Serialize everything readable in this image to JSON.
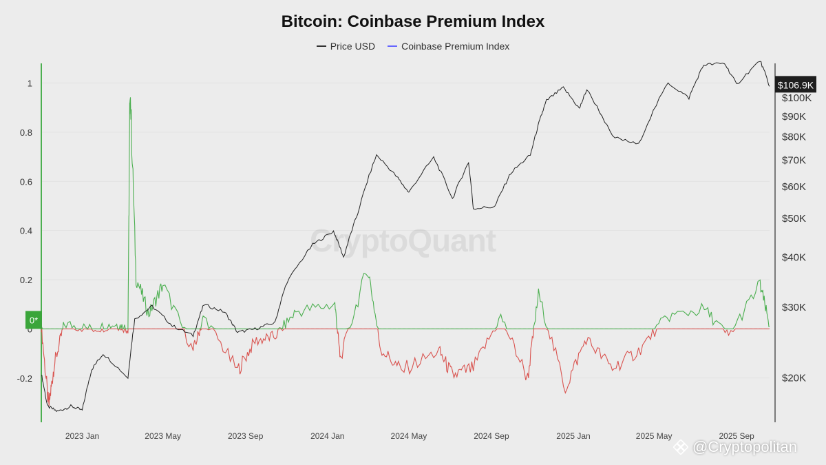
{
  "chart_data": {
    "type": "line",
    "title": "Bitcoin: Coinbase Premium Index",
    "legend": [
      {
        "name": "Price USD",
        "color": "#333333"
      },
      {
        "name": "Coinbase Premium Index",
        "color": "#6666ff"
      }
    ],
    "x_ticks": [
      "2023 Jan",
      "2023 May",
      "2023 Sep",
      "2024 Jan",
      "2024 May",
      "2024 Sep",
      "2025 Jan",
      "2025 May",
      "2025 Sep"
    ],
    "left_axis": {
      "ticks": [
        -0.2,
        0,
        0.2,
        0.4,
        0.6,
        0.8,
        1
      ],
      "tick_labels": [
        "-0.2",
        "0",
        "0.2",
        "0.4",
        "0.6",
        "0.8",
        "1"
      ],
      "range": [
        -0.38,
        1.08
      ]
    },
    "right_axis": {
      "scale": "log",
      "ticks": [
        20000,
        30000,
        40000,
        50000,
        60000,
        70000,
        80000,
        90000,
        100000
      ],
      "tick_labels": [
        "$20K",
        "$30K",
        "$40K",
        "$50K",
        "$60K",
        "$70K",
        "$80K",
        "$90K",
        "$100K"
      ],
      "range": [
        15500,
        122000
      ]
    },
    "time_range": [
      "2022-11-01",
      "2025-10-20"
    ],
    "current_price_label": "$106.9K",
    "current_index_label": "0*",
    "price_series": [
      {
        "t": "2022-11-01",
        "v": 20500
      },
      {
        "t": "2022-11-10",
        "v": 17000
      },
      {
        "t": "2022-11-25",
        "v": 16500
      },
      {
        "t": "2022-12-15",
        "v": 17000
      },
      {
        "t": "2023-01-01",
        "v": 16600
      },
      {
        "t": "2023-01-15",
        "v": 21000
      },
      {
        "t": "2023-02-01",
        "v": 23000
      },
      {
        "t": "2023-03-10",
        "v": 20000
      },
      {
        "t": "2023-03-20",
        "v": 28000
      },
      {
        "t": "2023-04-15",
        "v": 30200
      },
      {
        "t": "2023-05-15",
        "v": 27000
      },
      {
        "t": "2023-06-15",
        "v": 25500
      },
      {
        "t": "2023-07-01",
        "v": 30500
      },
      {
        "t": "2023-08-01",
        "v": 29200
      },
      {
        "t": "2023-08-20",
        "v": 26000
      },
      {
        "t": "2023-09-15",
        "v": 26500
      },
      {
        "t": "2023-10-15",
        "v": 27500
      },
      {
        "t": "2023-11-01",
        "v": 34500
      },
      {
        "t": "2023-12-10",
        "v": 43000
      },
      {
        "t": "2024-01-10",
        "v": 46500
      },
      {
        "t": "2024-01-25",
        "v": 40000
      },
      {
        "t": "2024-02-15",
        "v": 51500
      },
      {
        "t": "2024-03-14",
        "v": 72000
      },
      {
        "t": "2024-04-15",
        "v": 63000
      },
      {
        "t": "2024-05-01",
        "v": 58000
      },
      {
        "t": "2024-06-07",
        "v": 71000
      },
      {
        "t": "2024-07-05",
        "v": 56000
      },
      {
        "t": "2024-07-29",
        "v": 69000
      },
      {
        "t": "2024-08-05",
        "v": 53000
      },
      {
        "t": "2024-09-06",
        "v": 53500
      },
      {
        "t": "2024-09-30",
        "v": 65000
      },
      {
        "t": "2024-10-29",
        "v": 72000
      },
      {
        "t": "2024-11-12",
        "v": 88000
      },
      {
        "t": "2024-11-22",
        "v": 98500
      },
      {
        "t": "2024-12-17",
        "v": 106000
      },
      {
        "t": "2025-01-10",
        "v": 94000
      },
      {
        "t": "2025-01-21",
        "v": 105000
      },
      {
        "t": "2025-02-28",
        "v": 80000
      },
      {
        "t": "2025-04-08",
        "v": 76500
      },
      {
        "t": "2025-05-22",
        "v": 109000
      },
      {
        "t": "2025-06-22",
        "v": 100000
      },
      {
        "t": "2025-07-14",
        "v": 121000
      },
      {
        "t": "2025-08-14",
        "v": 122000
      },
      {
        "t": "2025-09-01",
        "v": 108000
      },
      {
        "t": "2025-10-06",
        "v": 124000
      },
      {
        "t": "2025-10-20",
        "v": 106900
      }
    ],
    "premium_series": [
      {
        "t": "2022-11-01",
        "v": 0.01
      },
      {
        "t": "2022-11-12",
        "v": -0.32
      },
      {
        "t": "2022-11-20",
        "v": -0.15
      },
      {
        "t": "2022-12-05",
        "v": 0.02
      },
      {
        "t": "2023-01-15",
        "v": 0.0
      },
      {
        "t": "2023-02-20",
        "v": 0.02
      },
      {
        "t": "2023-03-10",
        "v": 0.0
      },
      {
        "t": "2023-03-13",
        "v": 1.0
      },
      {
        "t": "2023-03-22",
        "v": 0.21
      },
      {
        "t": "2023-04-10",
        "v": 0.06
      },
      {
        "t": "2023-05-01",
        "v": 0.18
      },
      {
        "t": "2023-06-15",
        "v": -0.09
      },
      {
        "t": "2023-07-01",
        "v": 0.05
      },
      {
        "t": "2023-08-20",
        "v": -0.17
      },
      {
        "t": "2023-09-15",
        "v": -0.05
      },
      {
        "t": "2023-10-15",
        "v": -0.03
      },
      {
        "t": "2023-11-15",
        "v": 0.07
      },
      {
        "t": "2024-01-12",
        "v": 0.1
      },
      {
        "t": "2024-01-20",
        "v": -0.12
      },
      {
        "t": "2024-03-01",
        "v": 0.25
      },
      {
        "t": "2024-03-20",
        "v": -0.08
      },
      {
        "t": "2024-04-20",
        "v": -0.17
      },
      {
        "t": "2024-06-15",
        "v": -0.09
      },
      {
        "t": "2024-07-05",
        "v": -0.19
      },
      {
        "t": "2024-08-05",
        "v": -0.16
      },
      {
        "t": "2024-09-15",
        "v": 0.05
      },
      {
        "t": "2024-10-25",
        "v": -0.2
      },
      {
        "t": "2024-11-10",
        "v": 0.14
      },
      {
        "t": "2024-12-20",
        "v": -0.24
      },
      {
        "t": "2025-01-20",
        "v": -0.04
      },
      {
        "t": "2025-02-28",
        "v": -0.16
      },
      {
        "t": "2025-04-08",
        "v": -0.09
      },
      {
        "t": "2025-05-20",
        "v": 0.05
      },
      {
        "t": "2025-07-15",
        "v": 0.08
      },
      {
        "t": "2025-08-20",
        "v": -0.03
      },
      {
        "t": "2025-10-06",
        "v": 0.18
      },
      {
        "t": "2025-10-20",
        "v": 0.01
      }
    ]
  },
  "watermark": "CryptoQuant",
  "credit": "@Cryptopolitan"
}
